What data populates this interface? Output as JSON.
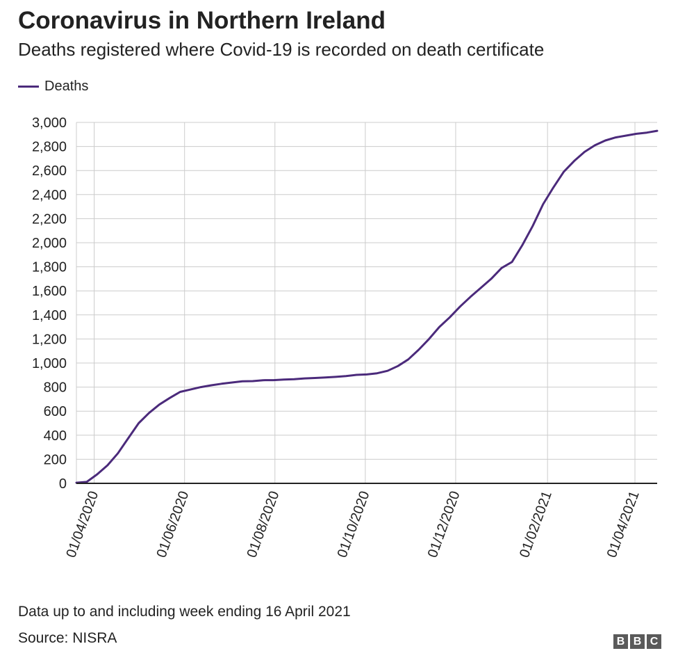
{
  "colors": {
    "series": "#4b2a7b",
    "grid": "#cccccc",
    "axis": "#222222",
    "text": "#222222"
  },
  "footer": {
    "note": "Data up to and including week ending 16 April 2021",
    "source": "Source: NISRA",
    "logo_letters": [
      "B",
      "B",
      "C"
    ]
  },
  "chart_data": {
    "type": "line",
    "title": "Coronavirus in Northern Ireland",
    "subtitle": "Deaths registered where Covid-19 is recorded on death certificate",
    "xlabel": "",
    "ylabel": "",
    "legend": {
      "position": "top-left"
    },
    "grid": true,
    "x_type": "date",
    "xlim": [
      "2020-03-20",
      "2021-04-16"
    ],
    "ylim": [
      0,
      3000
    ],
    "y_ticks": [
      0,
      200,
      400,
      600,
      800,
      1000,
      1200,
      1400,
      1600,
      1800,
      2000,
      2200,
      2400,
      2600,
      2800,
      3000
    ],
    "y_tick_labels": [
      "0",
      "200",
      "400",
      "600",
      "800",
      "1,000",
      "1,200",
      "1,400",
      "1,600",
      "1,800",
      "2,000",
      "2,200",
      "2,400",
      "2,600",
      "2,800",
      "3,000"
    ],
    "x_ticks": [
      "2020-04-01",
      "2020-06-01",
      "2020-08-01",
      "2020-10-01",
      "2020-12-01",
      "2021-02-01",
      "2021-04-01"
    ],
    "x_tick_labels": [
      "01/04/2020",
      "01/06/2020",
      "01/08/2020",
      "01/10/2020",
      "01/12/2020",
      "01/02/2021",
      "01/04/2021"
    ],
    "series": [
      {
        "name": "Deaths",
        "x": [
          "2020-03-20",
          "2020-03-27",
          "2020-04-03",
          "2020-04-10",
          "2020-04-17",
          "2020-04-24",
          "2020-05-01",
          "2020-05-08",
          "2020-05-15",
          "2020-05-22",
          "2020-05-29",
          "2020-06-05",
          "2020-06-12",
          "2020-06-19",
          "2020-06-26",
          "2020-07-03",
          "2020-07-10",
          "2020-07-17",
          "2020-07-24",
          "2020-07-31",
          "2020-08-07",
          "2020-08-14",
          "2020-08-21",
          "2020-08-28",
          "2020-09-04",
          "2020-09-11",
          "2020-09-18",
          "2020-09-25",
          "2020-10-02",
          "2020-10-09",
          "2020-10-16",
          "2020-10-23",
          "2020-10-30",
          "2020-11-06",
          "2020-11-13",
          "2020-11-20",
          "2020-11-27",
          "2020-12-04",
          "2020-12-11",
          "2020-12-18",
          "2020-12-25",
          "2021-01-01",
          "2021-01-08",
          "2021-01-15",
          "2021-01-22",
          "2021-01-29",
          "2021-02-05",
          "2021-02-12",
          "2021-02-19",
          "2021-02-26",
          "2021-03-05",
          "2021-03-12",
          "2021-03-19",
          "2021-03-26",
          "2021-04-02",
          "2021-04-09",
          "2021-04-16"
        ],
        "values": [
          5,
          12,
          75,
          150,
          250,
          375,
          500,
          585,
          655,
          710,
          760,
          780,
          800,
          815,
          828,
          838,
          848,
          850,
          857,
          858,
          863,
          866,
          872,
          876,
          880,
          885,
          892,
          902,
          905,
          915,
          935,
          975,
          1030,
          1110,
          1200,
          1300,
          1380,
          1470,
          1550,
          1625,
          1700,
          1790,
          1840,
          1980,
          2140,
          2320,
          2460,
          2590,
          2680,
          2755,
          2810,
          2850,
          2875,
          2890,
          2905,
          2915,
          2930
        ]
      }
    ]
  }
}
